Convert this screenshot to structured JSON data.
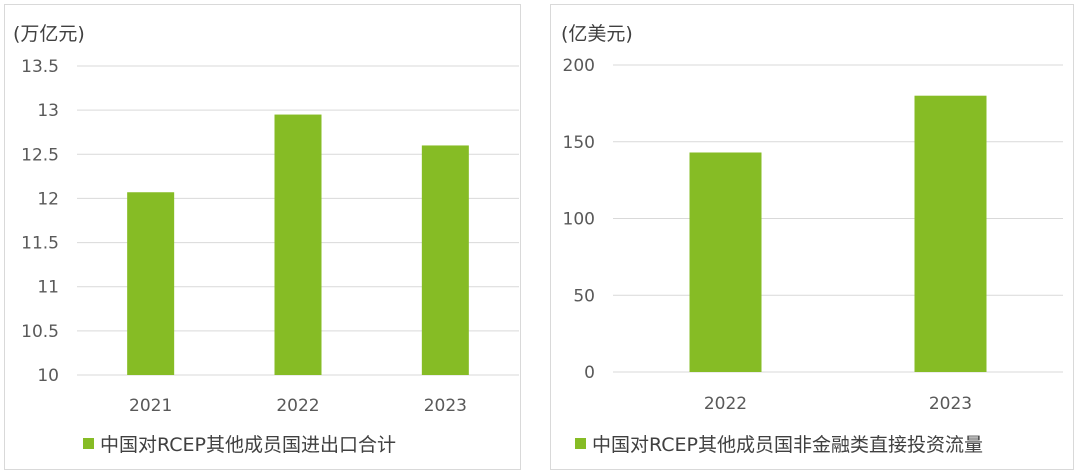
{
  "colors": {
    "bar": "#86bc25",
    "grid": "#d9d9d9",
    "text": "#595959"
  },
  "chart_data": [
    {
      "type": "bar",
      "unit_label": "(万亿元)",
      "categories": [
        "2021",
        "2022",
        "2023"
      ],
      "series": [
        {
          "name": "中国对RCEP其他成员国进出口合计",
          "values": [
            12.07,
            12.95,
            12.6
          ]
        }
      ],
      "yticks": [
        "10",
        "10.5",
        "11",
        "11.5",
        "12",
        "12.5",
        "13",
        "13.5"
      ],
      "ylim": [
        10,
        13.5
      ],
      "grid": true,
      "legend": "bottom"
    },
    {
      "type": "bar",
      "unit_label": "(亿美元)",
      "categories": [
        "2022",
        "2023"
      ],
      "series": [
        {
          "name": "中国对RCEP其他成员国非金融类直接投资流量",
          "values": [
            143,
            180
          ]
        }
      ],
      "yticks": [
        "0",
        "50",
        "100",
        "150",
        "200"
      ],
      "ylim": [
        0,
        200
      ],
      "grid": true,
      "legend": "bottom"
    }
  ]
}
